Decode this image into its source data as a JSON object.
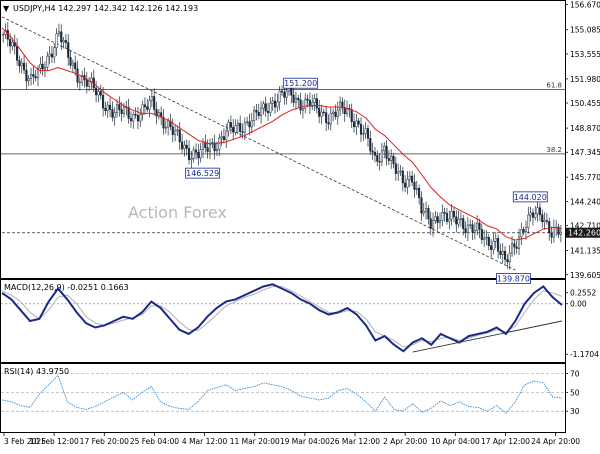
{
  "chart_data": [
    {
      "type": "candlestick",
      "title": "USDJPY,H4",
      "ohlc": [
        "142.297",
        "142.342",
        "142.126",
        "142.193"
      ],
      "watermark": "Action Forex",
      "current_price": "142.260",
      "y_ticks": [
        "156.670",
        "155.085",
        "153.555",
        "151.980",
        "150.455",
        "148.870",
        "147.345",
        "145.770",
        "144.240",
        "142.710",
        "141.135",
        "139.605"
      ],
      "ylim": [
        139.4,
        156.9
      ],
      "x_ticks": [
        "3 Feb 2025",
        "10 Feb 12:00",
        "17 Feb 20:00",
        "25 Feb 04:00",
        "4 Mar 12:00",
        "11 Mar 20:00",
        "19 Mar 04:00",
        "26 Mar 12:00",
        "2 Apr 20:00",
        "10 Apr 04:00",
        "17 Apr 12:00",
        "24 Apr 20:00"
      ],
      "fib_levels": [
        {
          "label": "61.8",
          "value": 151.3
        },
        {
          "label": "38.2",
          "value": 147.24
        }
      ],
      "annotations": [
        {
          "label": "151.200",
          "price": 151.2,
          "x": 32
        },
        {
          "label": "146.529",
          "price": 146.53,
          "x": 21.5
        },
        {
          "label": "144.020",
          "price": 144.02,
          "x": 56.6
        },
        {
          "label": "139.870",
          "price": 139.87,
          "x": 54.8
        }
      ],
      "close_series": [
        154.8,
        153.9,
        152.9,
        151.9,
        152.4,
        153.6,
        154.9,
        153.3,
        152.3,
        151.8,
        151.1,
        150.4,
        149.8,
        149.9,
        149.7,
        149.9,
        150.4,
        149.6,
        148.8,
        148.0,
        147.4,
        147.2,
        147.6,
        148.0,
        148.6,
        148.8,
        149.2,
        149.5,
        150.0,
        150.6,
        150.9,
        151.0,
        150.5,
        150.4,
        149.9,
        149.6,
        149.9,
        150.0,
        149.3,
        148.3,
        146.8,
        147.7,
        146.3,
        145.5,
        145.9,
        143.6,
        142.9,
        143.5,
        143.0,
        143.1,
        142.7,
        142.3,
        141.7,
        141.8,
        140.2,
        141.5,
        142.7,
        143.3,
        143.4,
        142.4,
        142.19
      ],
      "ma_series": [
        155.2,
        154.6,
        153.8,
        153.0,
        152.5,
        152.5,
        152.7,
        152.5,
        152.3,
        152.0,
        151.6,
        151.1,
        150.7,
        150.3,
        150.0,
        149.8,
        149.8,
        149.6,
        149.3,
        148.9,
        148.5,
        148.1,
        147.9,
        147.9,
        148.0,
        148.2,
        148.4,
        148.7,
        149.0,
        149.3,
        149.7,
        150.0,
        150.2,
        150.3,
        150.3,
        150.2,
        150.2,
        150.1,
        149.9,
        149.5,
        148.8,
        148.4,
        147.8,
        147.2,
        146.7,
        145.9,
        145.1,
        144.5,
        144.0,
        143.7,
        143.4,
        143.1,
        142.7,
        142.5,
        142.0,
        141.8,
        141.9,
        142.2,
        142.5,
        142.6,
        142.5
      ],
      "trendlines": [
        {
          "style": "dashed",
          "from": [
            0,
            155.9
          ],
          "to": [
            55,
            139.9
          ]
        },
        {
          "style": "dashed",
          "from": [
            0,
            142.26
          ],
          "to": [
            60,
            142.26
          ]
        }
      ]
    },
    {
      "type": "line",
      "title": "MACD(12,26,9) -0.0251 0.1663",
      "y_ticks": [
        "0.2552",
        "0.00",
        "-1.1704"
      ],
      "ylim": [
        -1.35,
        0.55
      ],
      "macd_series": [
        0.25,
        0.1,
        -0.15,
        -0.4,
        -0.35,
        0.05,
        0.35,
        0.1,
        -0.2,
        -0.45,
        -0.55,
        -0.5,
        -0.4,
        -0.3,
        -0.35,
        -0.2,
        0.05,
        -0.1,
        -0.35,
        -0.6,
        -0.7,
        -0.55,
        -0.3,
        -0.1,
        0.05,
        0.1,
        0.2,
        0.3,
        0.4,
        0.45,
        0.35,
        0.25,
        0.1,
        0.0,
        -0.15,
        -0.25,
        -0.2,
        -0.1,
        -0.25,
        -0.5,
        -0.85,
        -0.75,
        -0.95,
        -1.1,
        -0.9,
        -0.8,
        -0.95,
        -0.7,
        -0.8,
        -0.9,
        -0.75,
        -0.7,
        -0.65,
        -0.55,
        -0.7,
        -0.4,
        0.0,
        0.25,
        0.4,
        0.15,
        -0.03
      ],
      "signal_series": [
        0.3,
        0.2,
        0.05,
        -0.2,
        -0.35,
        -0.15,
        0.15,
        0.2,
        0.0,
        -0.3,
        -0.45,
        -0.5,
        -0.45,
        -0.38,
        -0.33,
        -0.25,
        -0.05,
        -0.05,
        -0.2,
        -0.42,
        -0.6,
        -0.62,
        -0.45,
        -0.25,
        -0.05,
        0.05,
        0.15,
        0.22,
        0.32,
        0.4,
        0.4,
        0.3,
        0.18,
        0.05,
        -0.08,
        -0.2,
        -0.22,
        -0.16,
        -0.18,
        -0.35,
        -0.65,
        -0.75,
        -0.85,
        -1.0,
        -0.95,
        -0.85,
        -0.88,
        -0.8,
        -0.78,
        -0.85,
        -0.8,
        -0.73,
        -0.68,
        -0.6,
        -0.65,
        -0.52,
        -0.2,
        0.1,
        0.3,
        0.25,
        0.17
      ],
      "trendlines": [
        {
          "style": "solid",
          "from": [
            44,
            -1.12
          ],
          "to": [
            60,
            -0.4
          ]
        }
      ]
    },
    {
      "type": "line",
      "title": "RSI(14) 43.9750",
      "y_ticks": [
        "70",
        "50",
        "30"
      ],
      "ylim": [
        8,
        80
      ],
      "rsi_series": [
        42,
        40,
        36,
        34,
        48,
        58,
        68,
        40,
        34,
        32,
        35,
        40,
        45,
        50,
        42,
        50,
        56,
        40,
        35,
        33,
        32,
        40,
        52,
        55,
        58,
        52,
        54,
        56,
        60,
        58,
        56,
        52,
        46,
        44,
        42,
        44,
        52,
        54,
        48,
        40,
        30,
        45,
        32,
        30,
        38,
        29,
        33,
        41,
        36,
        40,
        35,
        34,
        30,
        36,
        28,
        40,
        58,
        62,
        60,
        45,
        44
      ]
    }
  ]
}
